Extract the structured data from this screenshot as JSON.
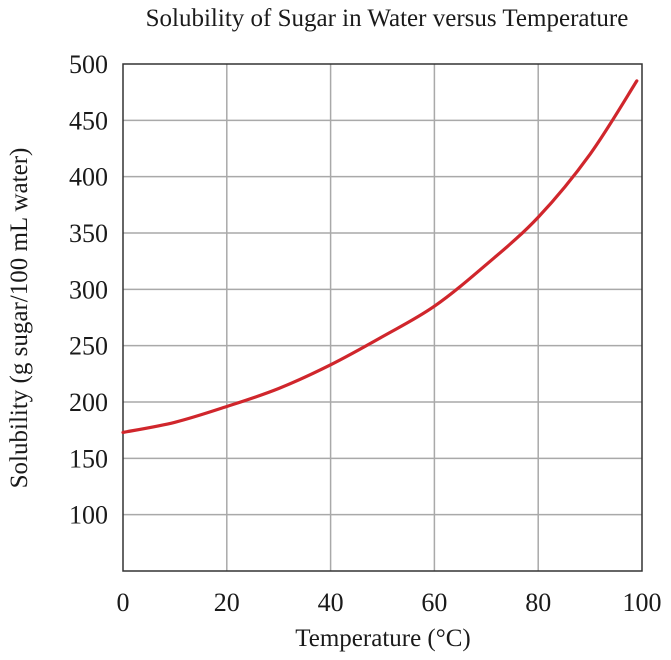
{
  "chart_data": {
    "type": "line",
    "title": "Solubility of Sugar in Water versus Temperature",
    "xlabel": "Temperature (°C)",
    "ylabel": "Solubility (g sugar/100 mL water)",
    "xlim": [
      0,
      100
    ],
    "ylim": [
      50,
      500
    ],
    "xticks": [
      0,
      20,
      40,
      60,
      80,
      100
    ],
    "yticks": [
      100,
      150,
      200,
      250,
      300,
      350,
      400,
      450,
      500
    ],
    "grid": true,
    "series": [
      {
        "color": "#d0262c",
        "x": [
          0,
          10,
          20,
          30,
          40,
          50,
          60,
          70,
          80,
          90,
          99
        ],
        "y": [
          173,
          182,
          196,
          212,
          233,
          258,
          285,
          322,
          364,
          420,
          485
        ]
      }
    ]
  }
}
